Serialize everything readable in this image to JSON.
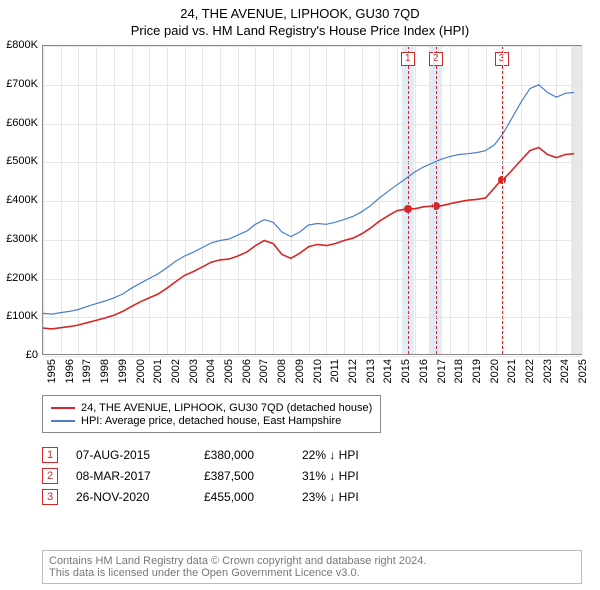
{
  "title": "24, THE AVENUE, LIPHOOK, GU30 7QD",
  "subtitle": "Price paid vs. HM Land Registry's House Price Index (HPI)",
  "chart": {
    "x_min": 1995,
    "x_max": 2025.5,
    "y_min": 0,
    "y_max": 800000,
    "y_ticks": [
      0,
      100000,
      200000,
      300000,
      400000,
      500000,
      600000,
      700000,
      800000
    ],
    "y_tick_labels": [
      "£0",
      "£100K",
      "£200K",
      "£300K",
      "£400K",
      "£500K",
      "£600K",
      "£700K",
      "£800K"
    ],
    "x_ticks": [
      1995,
      1996,
      1997,
      1998,
      1999,
      2000,
      2001,
      2002,
      2003,
      2004,
      2005,
      2006,
      2007,
      2008,
      2009,
      2010,
      2011,
      2012,
      2013,
      2014,
      2015,
      2016,
      2017,
      2018,
      2019,
      2020,
      2021,
      2022,
      2023,
      2024,
      2025
    ],
    "grid_color": "#e6e6e6",
    "border_color": "#888888",
    "series": {
      "hpi": {
        "label": "HPI: Average price, detached house, East Hampshire",
        "color": "#4b7ec8",
        "width": 1.2,
        "points": [
          [
            1995,
            110000
          ],
          [
            1995.5,
            108000
          ],
          [
            1996,
            112000
          ],
          [
            1996.5,
            115000
          ],
          [
            1997,
            120000
          ],
          [
            1997.5,
            128000
          ],
          [
            1998,
            135000
          ],
          [
            1998.5,
            142000
          ],
          [
            1999,
            150000
          ],
          [
            1999.5,
            160000
          ],
          [
            2000,
            175000
          ],
          [
            2000.5,
            188000
          ],
          [
            2001,
            200000
          ],
          [
            2001.5,
            212000
          ],
          [
            2002,
            228000
          ],
          [
            2002.5,
            245000
          ],
          [
            2003,
            258000
          ],
          [
            2003.5,
            268000
          ],
          [
            2004,
            280000
          ],
          [
            2004.5,
            292000
          ],
          [
            2005,
            298000
          ],
          [
            2005.5,
            302000
          ],
          [
            2006,
            312000
          ],
          [
            2006.5,
            322000
          ],
          [
            2007,
            340000
          ],
          [
            2007.5,
            352000
          ],
          [
            2008,
            345000
          ],
          [
            2008.5,
            320000
          ],
          [
            2009,
            308000
          ],
          [
            2009.5,
            320000
          ],
          [
            2010,
            338000
          ],
          [
            2010.5,
            342000
          ],
          [
            2011,
            340000
          ],
          [
            2011.5,
            345000
          ],
          [
            2012,
            352000
          ],
          [
            2012.5,
            360000
          ],
          [
            2013,
            372000
          ],
          [
            2013.5,
            388000
          ],
          [
            2014,
            408000
          ],
          [
            2014.5,
            425000
          ],
          [
            2015,
            442000
          ],
          [
            2015.5,
            458000
          ],
          [
            2016,
            475000
          ],
          [
            2016.5,
            488000
          ],
          [
            2017,
            498000
          ],
          [
            2017.5,
            508000
          ],
          [
            2018,
            515000
          ],
          [
            2018.5,
            520000
          ],
          [
            2019,
            522000
          ],
          [
            2019.5,
            525000
          ],
          [
            2020,
            530000
          ],
          [
            2020.5,
            545000
          ],
          [
            2021,
            575000
          ],
          [
            2021.5,
            615000
          ],
          [
            2022,
            655000
          ],
          [
            2022.5,
            690000
          ],
          [
            2023,
            700000
          ],
          [
            2023.5,
            680000
          ],
          [
            2024,
            668000
          ],
          [
            2024.5,
            678000
          ],
          [
            2025,
            680000
          ]
        ]
      },
      "property": {
        "label": "24, THE AVENUE, LIPHOOK, GU30 7QD (detached house)",
        "color": "#d62728",
        "width": 1.6,
        "points": [
          [
            1995,
            72000
          ],
          [
            1995.5,
            70000
          ],
          [
            1996,
            73000
          ],
          [
            1996.5,
            76000
          ],
          [
            1997,
            80000
          ],
          [
            1997.5,
            86000
          ],
          [
            1998,
            92000
          ],
          [
            1998.5,
            98000
          ],
          [
            1999,
            105000
          ],
          [
            1999.5,
            115000
          ],
          [
            2000,
            128000
          ],
          [
            2000.5,
            140000
          ],
          [
            2001,
            150000
          ],
          [
            2001.5,
            160000
          ],
          [
            2002,
            175000
          ],
          [
            2002.5,
            192000
          ],
          [
            2003,
            208000
          ],
          [
            2003.5,
            218000
          ],
          [
            2004,
            230000
          ],
          [
            2004.5,
            242000
          ],
          [
            2005,
            248000
          ],
          [
            2005.5,
            250000
          ],
          [
            2006,
            258000
          ],
          [
            2006.5,
            268000
          ],
          [
            2007,
            285000
          ],
          [
            2007.5,
            298000
          ],
          [
            2008,
            290000
          ],
          [
            2008.5,
            262000
          ],
          [
            2009,
            252000
          ],
          [
            2009.5,
            265000
          ],
          [
            2010,
            282000
          ],
          [
            2010.5,
            288000
          ],
          [
            2011,
            285000
          ],
          [
            2011.5,
            290000
          ],
          [
            2012,
            298000
          ],
          [
            2012.5,
            304000
          ],
          [
            2013,
            315000
          ],
          [
            2013.5,
            330000
          ],
          [
            2014,
            348000
          ],
          [
            2014.5,
            362000
          ],
          [
            2015,
            375000
          ],
          [
            2015.6,
            380000
          ],
          [
            2016,
            380000
          ],
          [
            2016.5,
            385000
          ],
          [
            2017.18,
            387500
          ],
          [
            2017.5,
            387500
          ],
          [
            2018,
            393000
          ],
          [
            2018.5,
            398000
          ],
          [
            2019,
            402000
          ],
          [
            2019.5,
            404000
          ],
          [
            2020,
            408000
          ],
          [
            2020.9,
            455000
          ],
          [
            2021,
            455000
          ],
          [
            2021.5,
            480000
          ],
          [
            2022,
            505000
          ],
          [
            2022.5,
            530000
          ],
          [
            2023,
            538000
          ],
          [
            2023.5,
            520000
          ],
          [
            2024,
            512000
          ],
          [
            2024.5,
            520000
          ],
          [
            2025,
            522000
          ]
        ]
      }
    },
    "event_band": {
      "color": "#dbe9f6",
      "opacity": 0.85
    },
    "events": [
      {
        "n": "1",
        "x": 2015.6,
        "band_half_width": 0.35,
        "date": "07-AUG-2015",
        "price": "£380,000",
        "pct": "22% ↓ HPI",
        "marker_y": 380000,
        "color": "#d62728"
      },
      {
        "n": "2",
        "x": 2017.18,
        "band_half_width": 0.35,
        "date": "08-MAR-2017",
        "price": "£387,500",
        "pct": "31% ↓ HPI",
        "marker_y": 387500,
        "color": "#d62728"
      },
      {
        "n": "3",
        "x": 2020.9,
        "band_half_width": 0.0,
        "date": "26-NOV-2020",
        "price": "£455,000",
        "pct": "23% ↓ HPI",
        "marker_y": 455000,
        "color": "#d62728"
      }
    ],
    "present_band": {
      "from": 2024.8,
      "to": 2025.5,
      "color": "#e8e8e8"
    }
  },
  "legend": {
    "rows": [
      {
        "color": "#d62728",
        "key": "property"
      },
      {
        "color": "#4b7ec8",
        "key": "hpi"
      }
    ]
  },
  "footer_line1": "Contains HM Land Registry data © Crown copyright and database right 2024.",
  "footer_line2": "This data is licensed under the Open Government Licence v3.0."
}
